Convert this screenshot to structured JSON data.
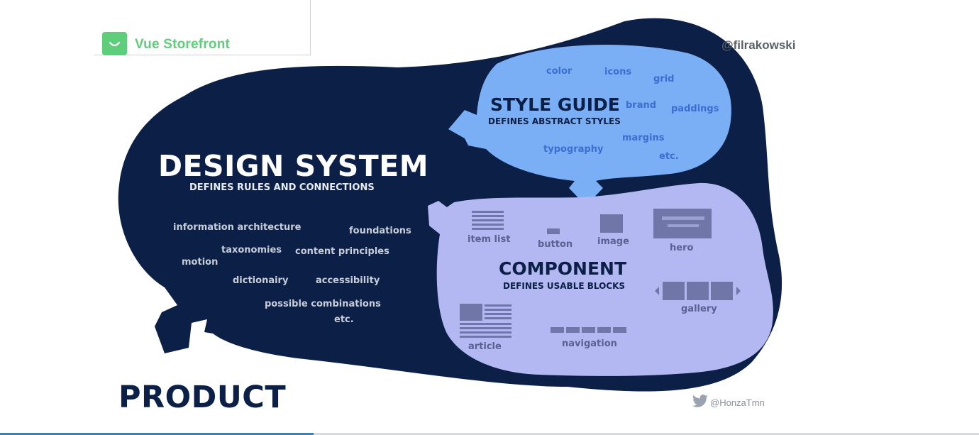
{
  "header": {
    "logo_text": "Vue Storefront",
    "author_handle": "@filrakowski"
  },
  "design_system": {
    "title": "DESIGN SYSTEM",
    "subtitle": "DEFINES RULES AND CONNECTIONS",
    "words": [
      "information architecture",
      "foundations",
      "taxonomies",
      "content principles",
      "motion",
      "dictionairy",
      "accessibility",
      "possible combinations",
      "etc."
    ]
  },
  "style_guide": {
    "title": "STYLE GUIDE",
    "subtitle": "DEFINES ABSTRACT STYLES",
    "words": [
      "color",
      "icons",
      "grid",
      "brand",
      "paddings",
      "margins",
      "typography",
      "etc."
    ]
  },
  "component": {
    "title": "COMPONENT",
    "subtitle": "DEFINES USABLE BLOCKS",
    "items": [
      "item list",
      "button",
      "image",
      "hero",
      "gallery",
      "article",
      "navigation"
    ]
  },
  "product": {
    "title": "PRODUCT"
  },
  "credit": {
    "twitter_handle": "@HonzaTmn"
  },
  "slide_progress": 0.32,
  "colors": {
    "design_system_fill": "#0b1f47",
    "style_guide_fill": "#7aaff5",
    "component_fill": "#b3b8f2",
    "brand_green": "#5ece7b",
    "progress_blue": "#3a7fc4"
  }
}
